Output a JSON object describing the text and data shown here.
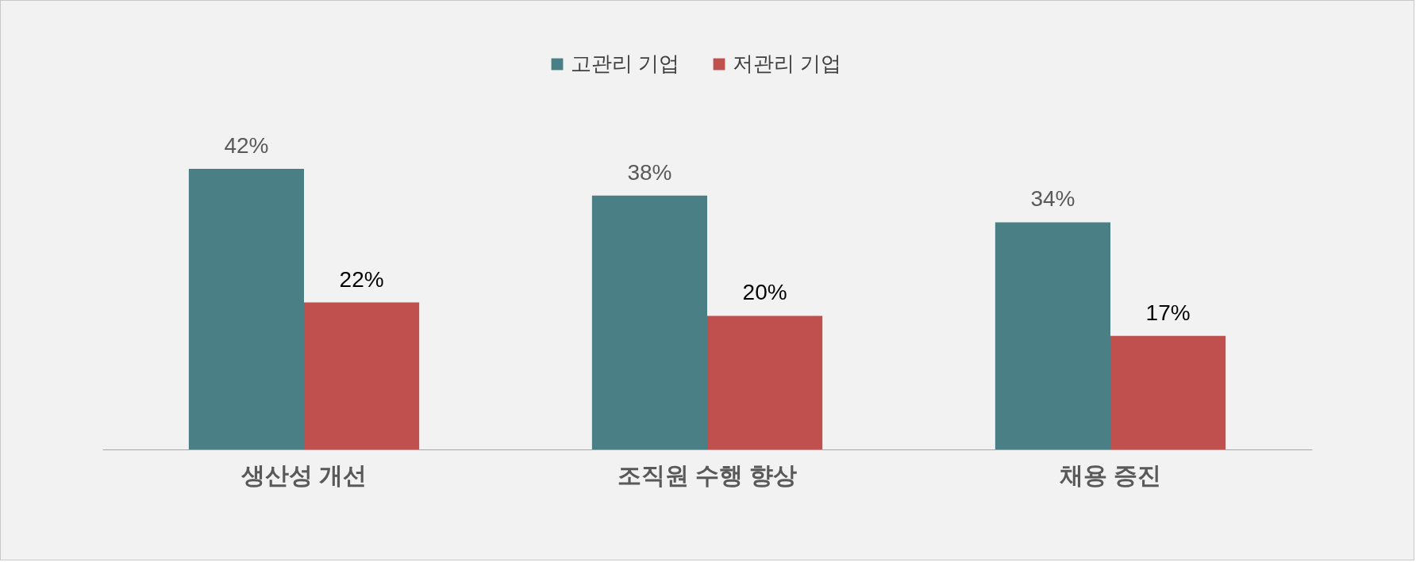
{
  "chart_data": {
    "type": "bar",
    "categories": [
      "생산성 개선",
      "조직원 수행 향상",
      "채용 증진"
    ],
    "series": [
      {
        "name": "고관리 기업",
        "color": "#4a7f85",
        "values": [
          42,
          38,
          34
        ],
        "value_labels": [
          "42%",
          "38%",
          "34%"
        ]
      },
      {
        "name": "저관리 기업",
        "color": "#c0504d",
        "values": [
          22,
          20,
          17
        ],
        "value_labels": [
          "22%",
          "20%",
          "17%"
        ]
      }
    ],
    "legend": "top",
    "grid": false
  }
}
